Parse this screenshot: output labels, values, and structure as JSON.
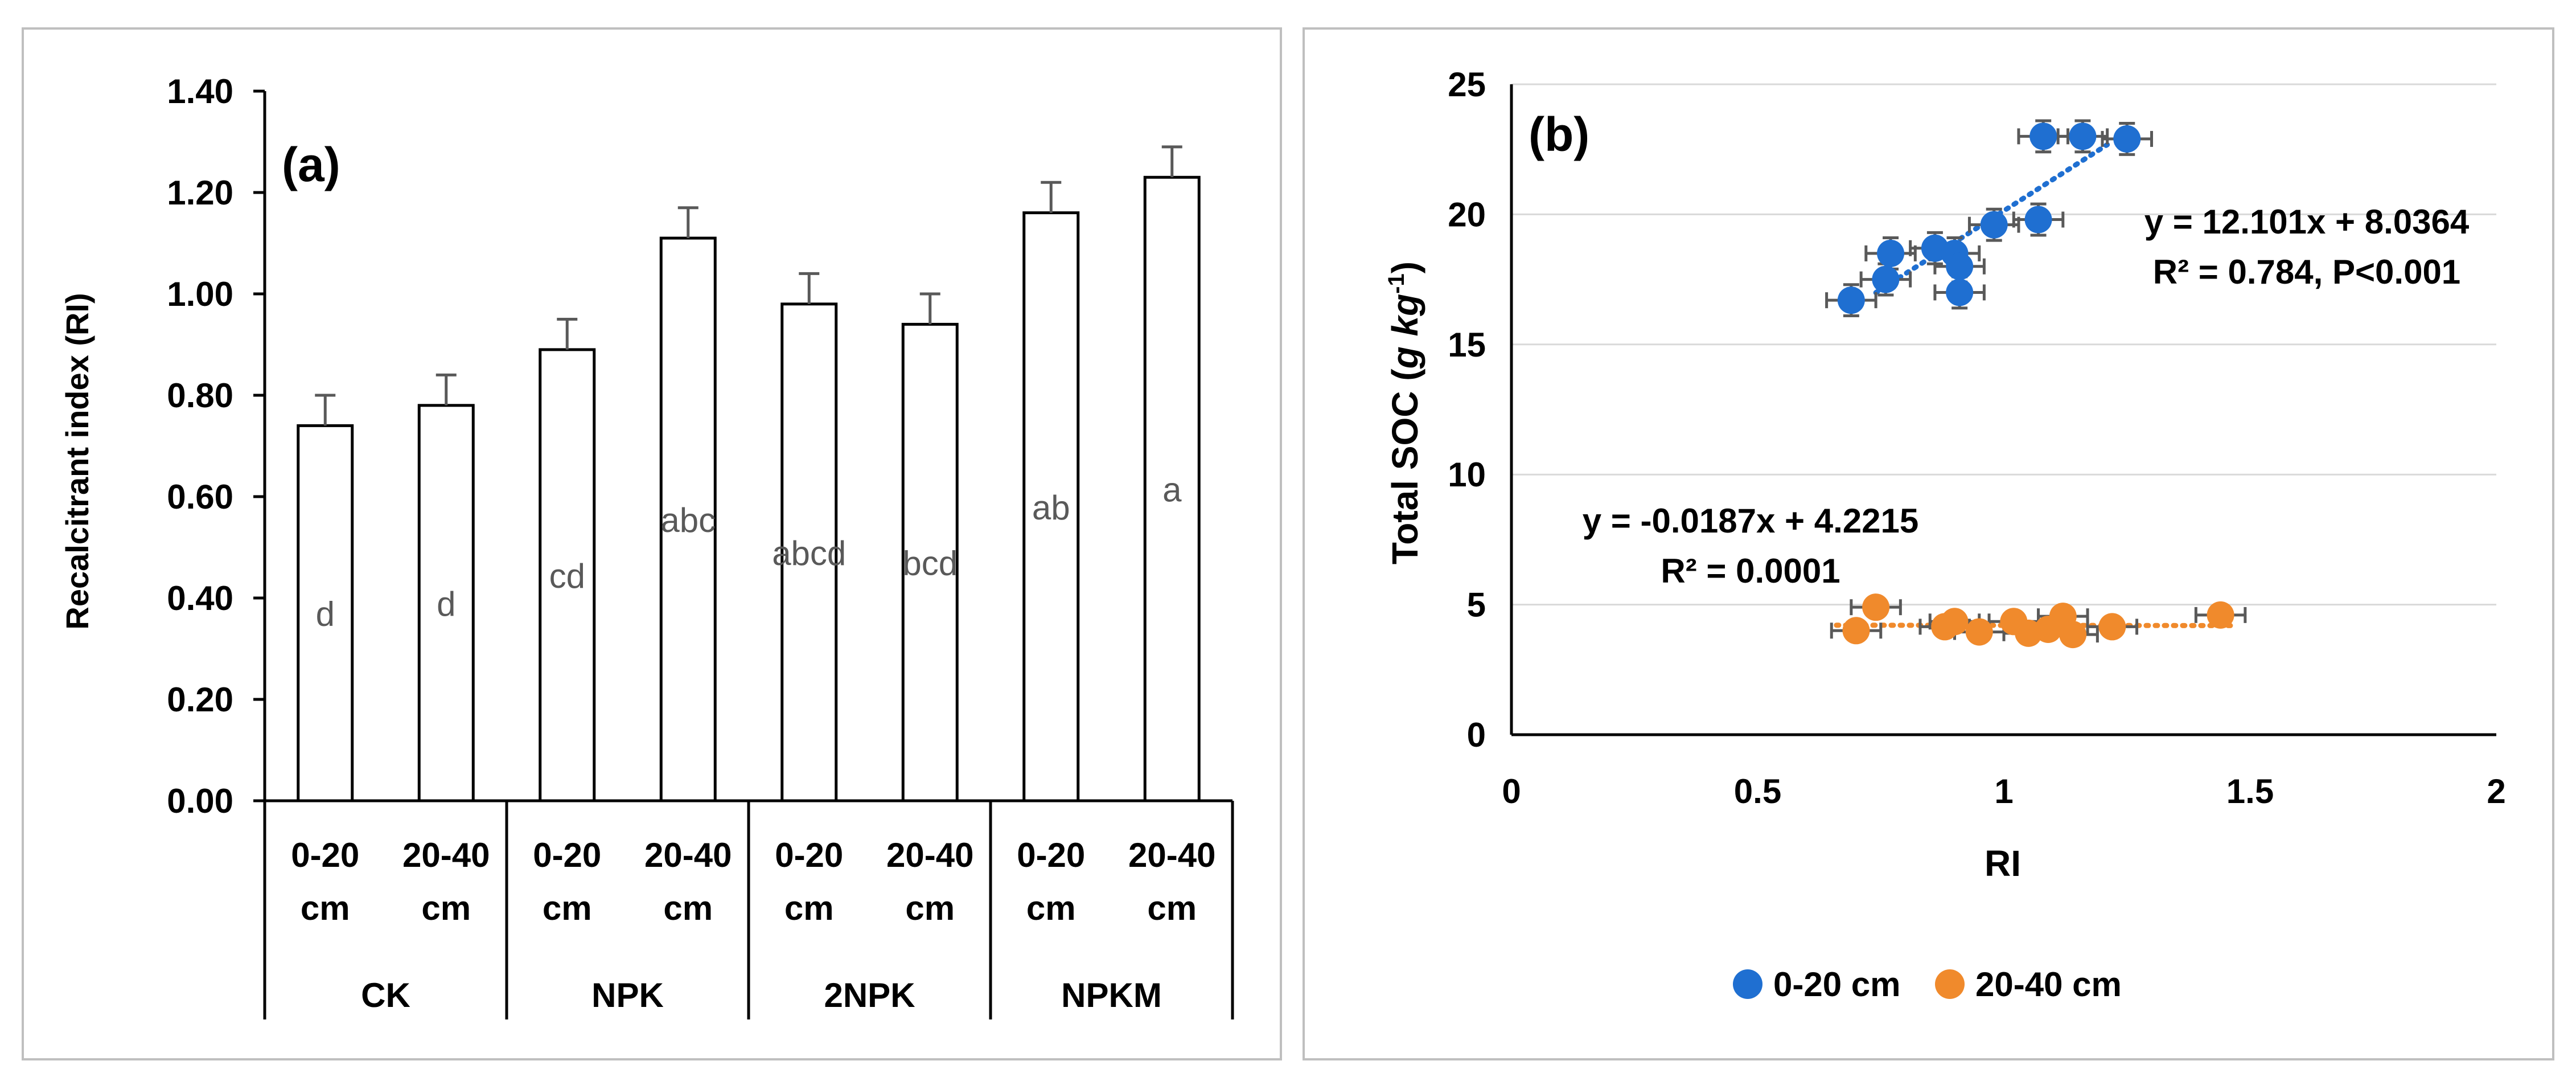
{
  "chart_data": [
    {
      "panel": "(a)",
      "type": "bar",
      "title": "",
      "ylabel": "Recalcitrant index (RI)",
      "ylim": [
        0,
        1.4
      ],
      "yticks": [
        "0.00",
        "0.20",
        "0.40",
        "0.60",
        "0.80",
        "1.00",
        "1.20",
        "1.40"
      ],
      "groups": [
        "CK",
        "NPK",
        "2NPK",
        "NPKM"
      ],
      "depths": [
        [
          "0-20",
          "cm"
        ],
        [
          "20-40",
          "cm"
        ]
      ],
      "bars": [
        {
          "group": "CK",
          "depth": "0-20 cm",
          "value": 0.74,
          "error": 0.06,
          "letter": "d"
        },
        {
          "group": "CK",
          "depth": "20-40 cm",
          "value": 0.78,
          "error": 0.06,
          "letter": "d"
        },
        {
          "group": "NPK",
          "depth": "0-20 cm",
          "value": 0.89,
          "error": 0.06,
          "letter": "cd"
        },
        {
          "group": "NPK",
          "depth": "20-40 cm",
          "value": 1.11,
          "error": 0.06,
          "letter": "abc"
        },
        {
          "group": "2NPK",
          "depth": "0-20 cm",
          "value": 0.98,
          "error": 0.06,
          "letter": "abcd"
        },
        {
          "group": "2NPK",
          "depth": "20-40 cm",
          "value": 0.94,
          "error": 0.06,
          "letter": "bcd"
        },
        {
          "group": "NPKM",
          "depth": "0-20 cm",
          "value": 1.16,
          "error": 0.06,
          "letter": "ab"
        },
        {
          "group": "NPKM",
          "depth": "20-40 cm",
          "value": 1.23,
          "error": 0.06,
          "letter": "a"
        }
      ]
    },
    {
      "panel": "(b)",
      "type": "scatter",
      "xlabel": "RI",
      "ylabel_main": "Total SOC (",
      "ylabel_unit": "g kg",
      "ylabel_sup": "-1",
      "ylabel_close": ")",
      "xlim": [
        0,
        2
      ],
      "ylim": [
        0,
        25
      ],
      "xticks": [
        "0",
        "0.5",
        "1",
        "1.5",
        "2"
      ],
      "yticks": [
        "0",
        "5",
        "10",
        "15",
        "20",
        "25"
      ],
      "series": [
        {
          "name": "0-20 cm",
          "color": "#1f6fd1",
          "points": [
            [
              0.69,
              16.7
            ],
            [
              0.76,
              17.5
            ],
            [
              0.77,
              18.5
            ],
            [
              0.86,
              18.7
            ],
            [
              0.9,
              18.5
            ],
            [
              0.91,
              18.0
            ],
            [
              0.91,
              17.0
            ],
            [
              0.98,
              19.6
            ],
            [
              1.07,
              19.8
            ],
            [
              1.08,
              23.0
            ],
            [
              1.16,
              23.0
            ],
            [
              1.25,
              22.9
            ]
          ],
          "x_error": 0.05,
          "y_error": 0.6,
          "fit": {
            "slope": 12.101,
            "intercept": 8.0364,
            "x_range": [
              0.74,
              1.21
            ]
          },
          "equation": "y = 12.101x + 8.0364",
          "r2_text": "R² = 0.784, P<0.001"
        },
        {
          "name": "20-40 cm",
          "color": "#f08a2c",
          "points": [
            [
              0.7,
              4.0
            ],
            [
              0.74,
              4.9
            ],
            [
              0.88,
              4.15
            ],
            [
              0.9,
              4.35
            ],
            [
              0.95,
              3.95
            ],
            [
              1.02,
              4.35
            ],
            [
              1.05,
              3.9
            ],
            [
              1.09,
              4.05
            ],
            [
              1.12,
              4.55
            ],
            [
              1.14,
              3.85
            ],
            [
              1.22,
              4.15
            ],
            [
              1.44,
              4.6
            ]
          ],
          "x_error": 0.05,
          "y_error": 0.3,
          "fit": {
            "slope": -0.0187,
            "intercept": 4.2215,
            "x_range": [
              0.66,
              1.47
            ]
          },
          "equation": "y = -0.0187x + 4.2215",
          "r2_text": "R² = 0.0001"
        }
      ]
    }
  ]
}
